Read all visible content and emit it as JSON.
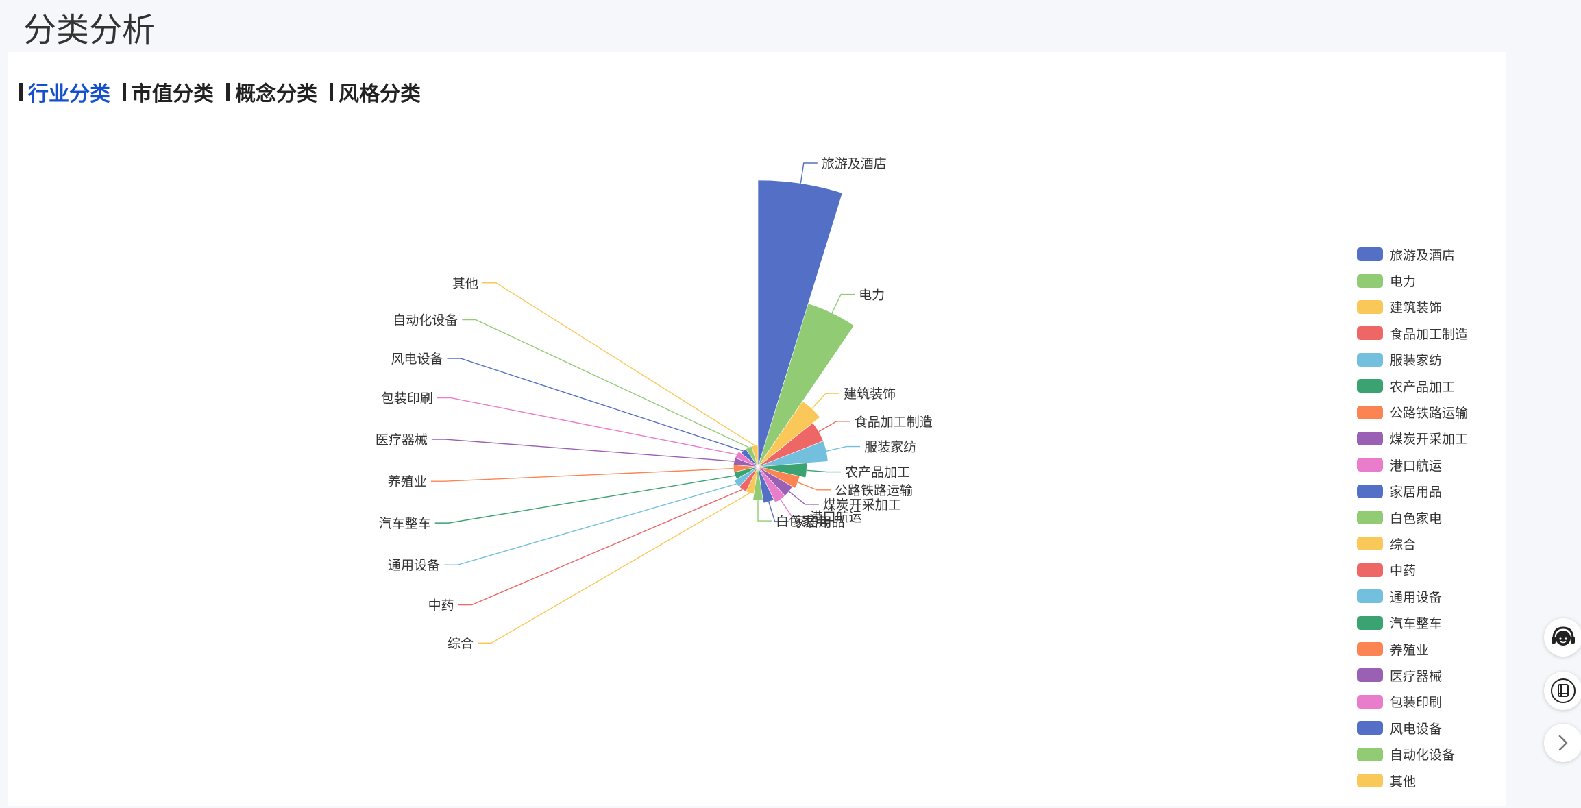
{
  "page": {
    "title": "分类分析"
  },
  "tabs": [
    {
      "label": "行业分类",
      "active": true
    },
    {
      "label": "市值分类",
      "active": false
    },
    {
      "label": "概念分类",
      "active": false
    },
    {
      "label": "风格分类",
      "active": false
    }
  ],
  "icons": {
    "service": "customer-service-headset-icon",
    "manual": "book-icon",
    "next": "chevron-right-icon"
  },
  "chart_data": {
    "type": "pie",
    "rose_type": "radius",
    "legend_position": "right",
    "categories": [
      "旅游及酒店",
      "电力",
      "建筑装饰",
      "食品加工制造",
      "服装家纺",
      "农产品加工",
      "公路铁路运输",
      "煤炭开采加工",
      "港口航运",
      "家居用品",
      "白色家电",
      "综合",
      "中药",
      "通用设备",
      "汽车整车",
      "养殖业",
      "医疗器械",
      "包装印刷",
      "风电设备",
      "自动化设备",
      "其他"
    ],
    "values": [
      90,
      52,
      22,
      19,
      19,
      12,
      10,
      9,
      9,
      8,
      7,
      5,
      5,
      5,
      4,
      4,
      4,
      4,
      3,
      3,
      3
    ],
    "colors": [
      "#5470c6",
      "#91cc75",
      "#fac858",
      "#ee6666",
      "#73c0de",
      "#3ba272",
      "#fc8452",
      "#9a60b4",
      "#ea7ccc",
      "#5470c6",
      "#91cc75",
      "#fac858",
      "#ee6666",
      "#73c0de",
      "#3ba272",
      "#fc8452",
      "#9a60b4",
      "#ea7ccc",
      "#5470c6",
      "#91cc75",
      "#fac858"
    ]
  }
}
